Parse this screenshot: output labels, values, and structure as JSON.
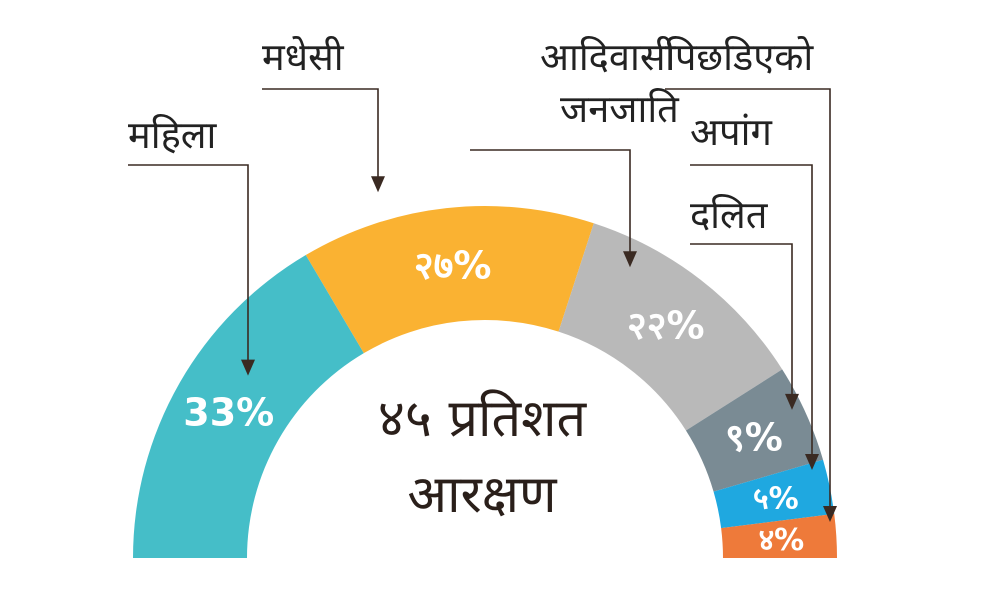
{
  "chart_data": {
    "type": "pie",
    "shape": "half-donut",
    "categories": [
      "महिला",
      "मधेसी",
      "आदिवासी जनजाति",
      "दलित",
      "अपांग",
      "पिछडिएको"
    ],
    "label_lines": [
      [
        "महिला"
      ],
      [
        "मधेसी"
      ],
      [
        "आदिवासी",
        "जनजाति"
      ],
      [
        "दलित"
      ],
      [
        "अपांग"
      ],
      [
        "पिछडिएको"
      ]
    ],
    "values": [
      33,
      27,
      22,
      9,
      5,
      4
    ],
    "value_labels": [
      "33%",
      "२७%",
      "२२%",
      "९%",
      "५%",
      "४%"
    ],
    "colors": [
      "#45BEC8",
      "#FAB232",
      "#B9B9B9",
      "#7A8B94",
      "#1FA8E0",
      "#EE7A3A"
    ],
    "center_title": [
      "४५ प्रतिशत",
      "आरक्षण"
    ]
  }
}
